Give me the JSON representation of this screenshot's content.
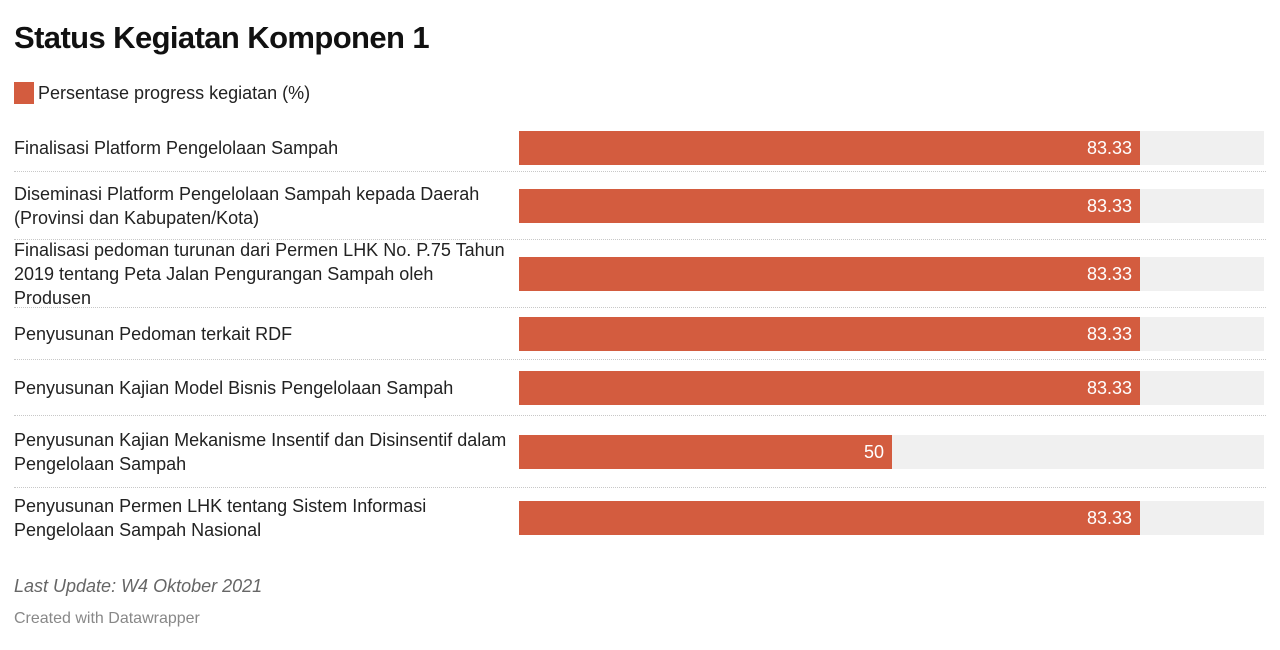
{
  "title": "Status Kegiatan Komponen 1",
  "legend": {
    "label": "Persentase progress kegiatan (%)",
    "color": "#d35c3f"
  },
  "chart_data": {
    "type": "bar",
    "orientation": "horizontal",
    "xlim": [
      0,
      100
    ],
    "grid": false,
    "legend_position": "top-left",
    "series": [
      {
        "name": "Persentase progress kegiatan (%)",
        "color": "#d35c3f"
      }
    ],
    "categories": [
      "Finalisasi Platform Pengelolaan Sampah",
      "Diseminasi Platform Pengelolaan Sampah kepada Daerah (Provinsi dan Kabupaten/Kota)",
      "Finalisasi pedoman turunan dari Permen LHK No. P.75 Tahun 2019 tentang Peta Jalan Pengurangan Sampah oleh Produsen",
      "Penyusunan Pedoman terkait RDF",
      "Penyusunan Kajian Model Bisnis Pengelolaan Sampah",
      "Penyusunan Kajian Mekanisme Insentif dan Disinsentif dalam Pengelolaan Sampah",
      "Penyusunan Permen LHK tentang Sistem Informasi Pengelolaan Sampah Nasional"
    ],
    "values": [
      83.33,
      83.33,
      83.33,
      83.33,
      83.33,
      50,
      83.33
    ],
    "value_labels": [
      "83.33",
      "83.33",
      "83.33",
      "83.33",
      "83.33",
      "50",
      "83.33"
    ]
  },
  "notes": "Last Update: W4 Oktober 2021",
  "credit": "Created with Datawrapper"
}
